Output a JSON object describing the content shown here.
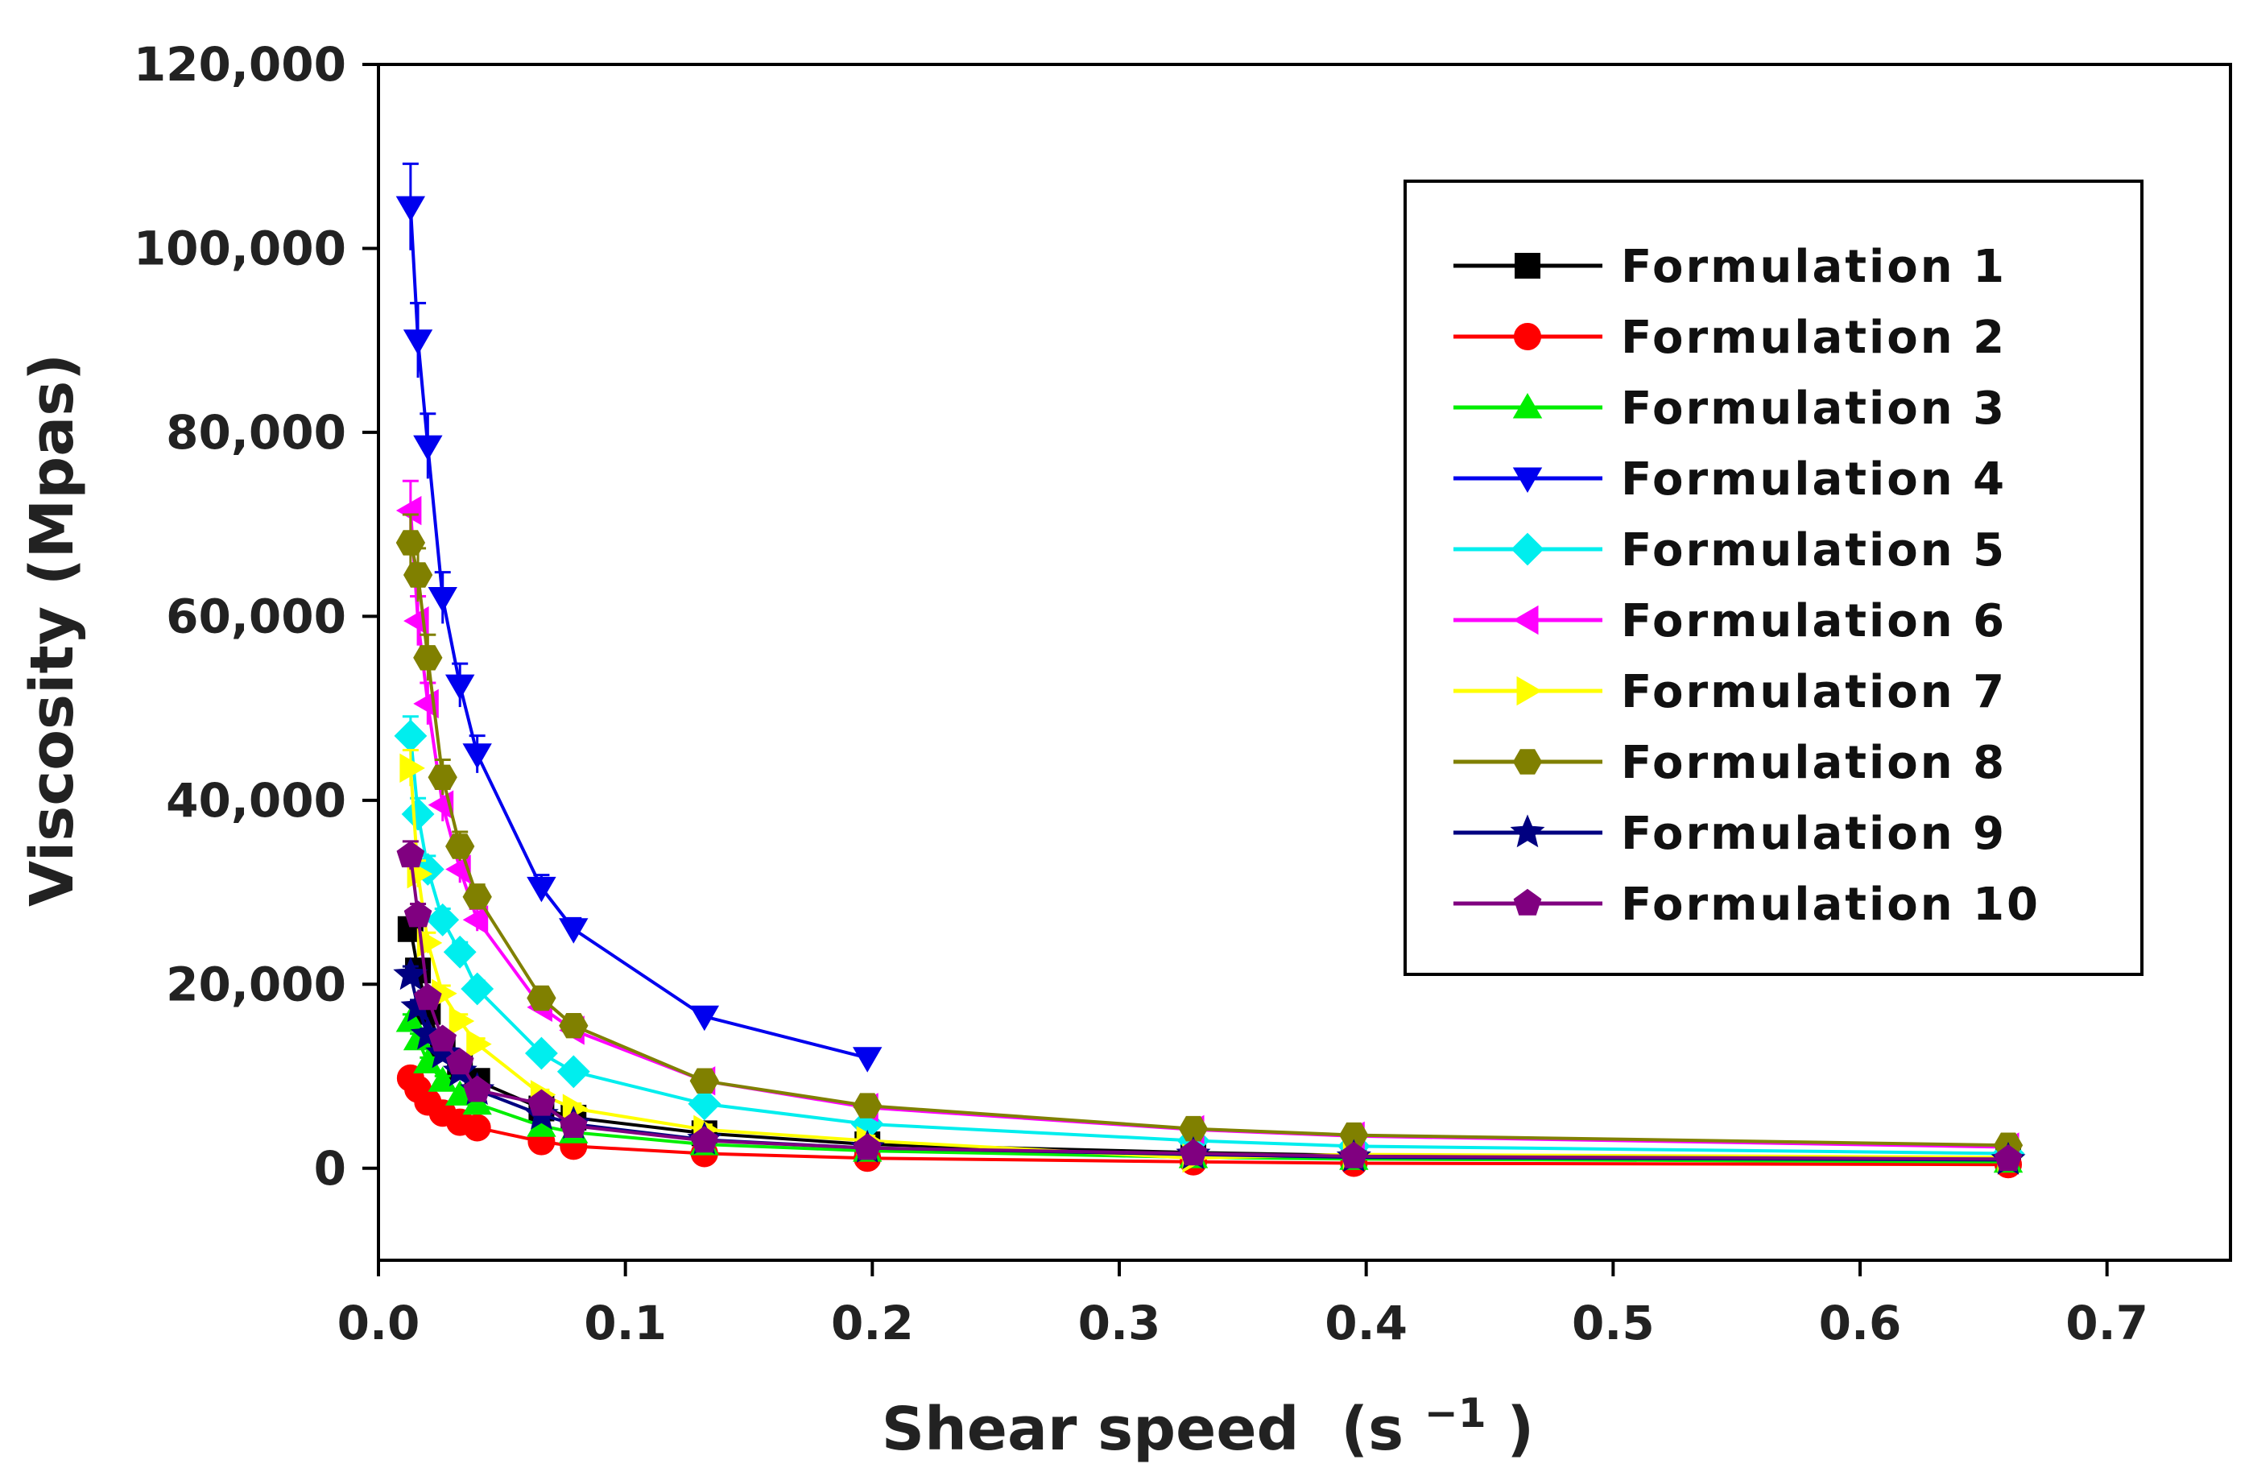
{
  "chart_data": {
    "type": "line",
    "title": "",
    "xlabel": "Shear speed",
    "xlabel_unit_base": "(s",
    "xlabel_unit_exp": "−1",
    "xlabel_unit_close": ")",
    "ylabel": "Viscosity (Mpas)",
    "xlim": [
      0.0,
      0.75
    ],
    "ylim": [
      -10000,
      120000
    ],
    "x_ticks": [
      "0.0",
      "0.1",
      "0.2",
      "0.3",
      "0.4",
      "0.5",
      "0.6",
      "0.7"
    ],
    "x_tick_values": [
      0.0,
      0.1,
      0.2,
      0.3,
      0.4,
      0.5,
      0.6,
      0.7
    ],
    "y_ticks": [
      "0",
      "20,000",
      "40,000",
      "60,000",
      "80,000",
      "100,000",
      "120,000"
    ],
    "y_tick_values": [
      0,
      20000,
      40000,
      60000,
      80000,
      100000,
      120000
    ],
    "grid": false,
    "legend_position": "top-right",
    "series": [
      {
        "name": "Formulation 1",
        "color": "#000000",
        "marker": "square",
        "x": [
          0.013,
          0.016,
          0.02,
          0.026,
          0.033,
          0.04,
          0.066,
          0.079,
          0.132,
          0.198,
          0.33,
          0.395,
          0.66
        ],
        "y": [
          26000,
          21500,
          17000,
          13000,
          11000,
          9500,
          6500,
          5500,
          3800,
          2600,
          1700,
          1400,
          1000
        ]
      },
      {
        "name": "Formulation 2",
        "color": "#ff0000",
        "marker": "circle",
        "x": [
          0.013,
          0.016,
          0.02,
          0.026,
          0.033,
          0.04,
          0.066,
          0.079,
          0.132,
          0.198,
          0.33,
          0.395,
          0.66
        ],
        "y": [
          9800,
          8600,
          7200,
          6000,
          5000,
          4400,
          2900,
          2400,
          1600,
          1100,
          700,
          550,
          400
        ]
      },
      {
        "name": "Formulation 3",
        "color": "#00ee00",
        "marker": "triangle-up",
        "x": [
          0.013,
          0.016,
          0.02,
          0.026,
          0.033,
          0.04,
          0.066,
          0.079,
          0.132,
          0.198,
          0.33,
          0.395,
          0.66
        ],
        "y": [
          16000,
          14000,
          11500,
          9500,
          8000,
          7000,
          4600,
          3900,
          2600,
          1900,
          1200,
          1000,
          700
        ]
      },
      {
        "name": "Formulation 4",
        "color": "#0000ee",
        "marker": "triangle-down",
        "x": [
          0.013,
          0.016,
          0.02,
          0.026,
          0.033,
          0.04,
          0.066,
          0.079,
          0.132,
          0.198
        ],
        "y": [
          104500,
          90000,
          78500,
          62000,
          52500,
          45000,
          30500,
          26000,
          16500,
          12000
        ]
      },
      {
        "name": "Formulation 5",
        "color": "#00eeee",
        "marker": "diamond",
        "x": [
          0.013,
          0.016,
          0.02,
          0.026,
          0.033,
          0.04,
          0.066,
          0.079,
          0.132,
          0.198,
          0.33,
          0.395,
          0.66
        ],
        "y": [
          47000,
          38500,
          32500,
          27000,
          23500,
          19500,
          12500,
          10500,
          7000,
          4800,
          3000,
          2400,
          1600
        ]
      },
      {
        "name": "Formulation 6",
        "color": "#ff00ff",
        "marker": "triangle-left",
        "x": [
          0.013,
          0.016,
          0.02,
          0.026,
          0.033,
          0.04,
          0.066,
          0.079,
          0.132,
          0.198,
          0.33,
          0.395,
          0.66
        ],
        "y": [
          71500,
          59500,
          50500,
          39500,
          32500,
          27000,
          17500,
          15000,
          9500,
          6600,
          4200,
          3500,
          2300
        ]
      },
      {
        "name": "Formulation 7",
        "color": "#ffff00",
        "marker": "triangle-right",
        "x": [
          0.013,
          0.016,
          0.02,
          0.026,
          0.033,
          0.04,
          0.066,
          0.079,
          0.132,
          0.198,
          0.33,
          0.395,
          0.66
        ],
        "y": [
          43500,
          32000,
          24500,
          19000,
          16000,
          13500,
          8000,
          6500,
          4200,
          3000,
          1100,
          1500,
          1200
        ]
      },
      {
        "name": "Formulation 8",
        "color": "#808000",
        "marker": "hexagon",
        "x": [
          0.013,
          0.016,
          0.02,
          0.026,
          0.033,
          0.04,
          0.066,
          0.079,
          0.132,
          0.198,
          0.33,
          0.395,
          0.66
        ],
        "y": [
          68000,
          64500,
          55500,
          42500,
          35000,
          29500,
          18500,
          15500,
          9500,
          6800,
          4300,
          3600,
          2500
        ]
      },
      {
        "name": "Formulation 9",
        "color": "#000080",
        "marker": "star",
        "x": [
          0.013,
          0.016,
          0.02,
          0.026,
          0.033,
          0.04,
          0.066,
          0.079,
          0.132,
          0.198,
          0.33,
          0.395,
          0.66
        ],
        "y": [
          21000,
          17500,
          14500,
          12500,
          10500,
          8500,
          5800,
          4800,
          3100,
          2200,
          1500,
          1200,
          900
        ]
      },
      {
        "name": "Formulation 10",
        "color": "#800080",
        "marker": "pentagon",
        "x": [
          0.013,
          0.016,
          0.02,
          0.026,
          0.033,
          0.04,
          0.066,
          0.079,
          0.132,
          0.198,
          0.33,
          0.395,
          0.66
        ],
        "y": [
          34000,
          27500,
          18500,
          14000,
          11500,
          8500,
          7000,
          4600,
          3000,
          2200,
          1600,
          1300,
          1000
        ]
      }
    ]
  }
}
